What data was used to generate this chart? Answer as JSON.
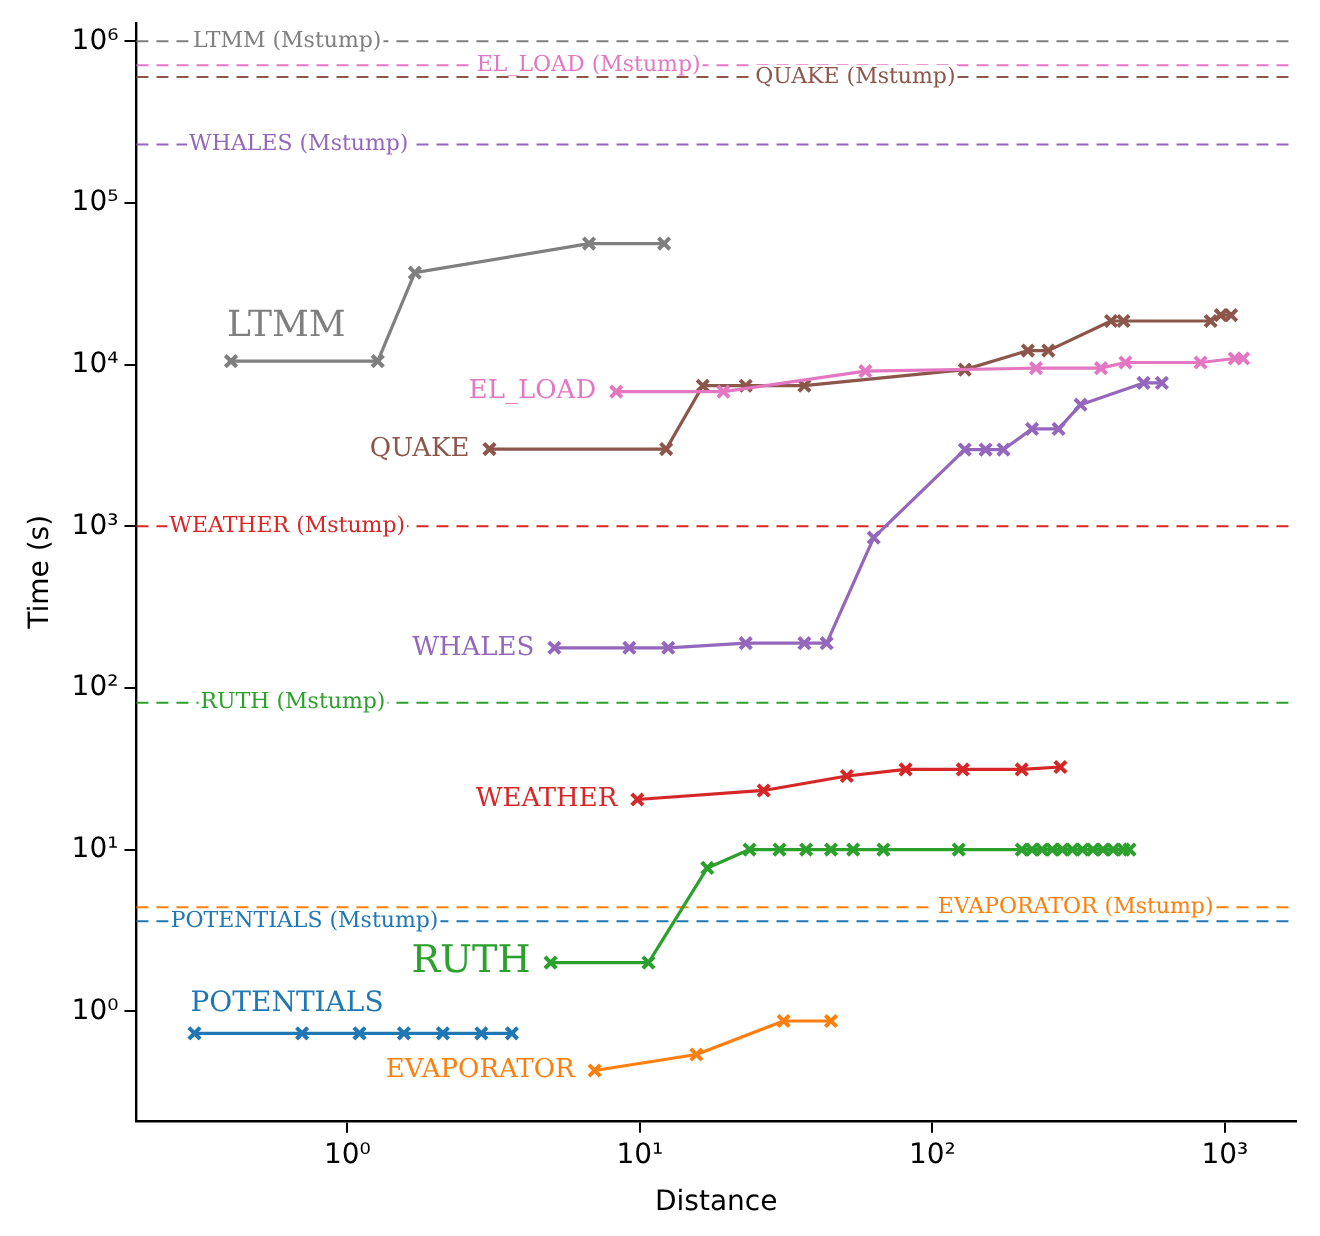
{
  "chart_data": {
    "type": "line",
    "xlabel": "Distance",
    "ylabel": "Time (s)",
    "log": "xy",
    "grid": false,
    "legend": false,
    "marker": "cross",
    "line_style": "solid",
    "xlim": [
      0.19,
      1750
    ],
    "ylim": [
      0.21,
      1300000
    ],
    "xticks": [
      {
        "value": 1,
        "label": "10⁰"
      },
      {
        "value": 10,
        "label": "10¹"
      },
      {
        "value": 100,
        "label": "10²"
      },
      {
        "value": 1000,
        "label": "10³"
      }
    ],
    "yticks": [
      {
        "value": 1,
        "label": "10⁰"
      },
      {
        "value": 10,
        "label": "10¹"
      },
      {
        "value": 100,
        "label": "10²"
      },
      {
        "value": 1000,
        "label": "10³"
      },
      {
        "value": 10000,
        "label": "10⁴"
      },
      {
        "value": 100000,
        "label": "10⁵"
      },
      {
        "value": 1000000,
        "label": "10⁶"
      }
    ],
    "series": [
      {
        "name": "LTMM",
        "color": "#7f7f7f",
        "x": [
          0.4,
          1.27,
          1.7,
          6.7,
          12.1
        ],
        "values": [
          10500,
          10500,
          37000,
          56000,
          56000
        ]
      },
      {
        "name": "EL_LOAD",
        "color": "#e377c2",
        "x": [
          8.3,
          19.3,
          59,
          226,
          377,
          457,
          826,
          1080,
          1155
        ],
        "values": [
          6800,
          6800,
          9100,
          9500,
          9500,
          10300,
          10300,
          10900,
          10900
        ]
      },
      {
        "name": "QUAKE",
        "color": "#8c564b",
        "x": [
          3.06,
          12.3,
          16.4,
          23,
          36.5,
          129,
          212,
          249,
          408,
          450,
          894,
          968,
          1050
        ],
        "values": [
          3000,
          3000,
          7400,
          7400,
          7400,
          9300,
          12200,
          12200,
          18600,
          18600,
          18600,
          20200,
          20200
        ]
      },
      {
        "name": "WHALES",
        "color": "#9467bd",
        "x": [
          5.1,
          9.2,
          12.5,
          23,
          36.5,
          43.5,
          63,
          129,
          152,
          175,
          219,
          270,
          321,
          527,
          609
        ],
        "values": [
          177,
          177,
          177,
          189,
          189,
          189,
          850,
          2980,
          2980,
          2980,
          4000,
          4000,
          5650,
          7700,
          7700
        ]
      },
      {
        "name": "WEATHER",
        "color": "#d62728",
        "x": [
          9.8,
          26.5,
          51,
          81,
          127,
          202,
          274
        ],
        "values": [
          20.4,
          23.2,
          28.5,
          31.3,
          31.3,
          31.3,
          32.4
        ]
      },
      {
        "name": "RUTH",
        "color": "#2ca02c",
        "x": [
          4.95,
          10.7,
          17,
          23.7,
          30,
          37,
          45,
          53.6,
          68,
          123,
          202,
          219,
          237,
          257,
          278,
          301,
          326,
          354,
          383,
          415,
          450,
          472
        ],
        "values": [
          2,
          2,
          7.7,
          10,
          10,
          10,
          10,
          10,
          10,
          10,
          10,
          10,
          10,
          10,
          10,
          10,
          10,
          10,
          10,
          10,
          10,
          10
        ]
      },
      {
        "name": "POTENTIALS",
        "color": "#1f77b4",
        "x": [
          0.3,
          0.7,
          1.1,
          1.56,
          2.12,
          2.87,
          3.65
        ],
        "values": [
          0.73,
          0.73,
          0.73,
          0.73,
          0.73,
          0.73,
          0.73
        ]
      },
      {
        "name": "EVAPORATOR",
        "color": "#ff7f0e",
        "x": [
          7,
          15.6,
          31,
          45
        ],
        "values": [
          0.43,
          0.54,
          0.87,
          0.87
        ]
      }
    ],
    "ref_lines": [
      {
        "axis": "y",
        "value": 1000000,
        "label": "LTMM (Mstump)",
        "color": "#7f7f7f",
        "line_style": "dashed"
      },
      {
        "axis": "y",
        "value": 710000,
        "label": "EL_LOAD (Mstump)",
        "color": "#e377c2",
        "line_style": "dashed"
      },
      {
        "axis": "y",
        "value": 600000,
        "label": "QUAKE (Mstump)",
        "color": "#8c564b",
        "line_style": "dashed"
      },
      {
        "axis": "y",
        "value": 230000,
        "label": "WHALES (Mstump)",
        "color": "#9467bd",
        "line_style": "dashed"
      },
      {
        "axis": "y",
        "value": 1000,
        "label": "WEATHER (Mstump)",
        "color": "#d62728",
        "line_style": "dashed"
      },
      {
        "axis": "y",
        "value": 81,
        "label": "RUTH (Mstump)",
        "color": "#2ca02c",
        "line_style": "dashed"
      },
      {
        "axis": "y",
        "value": 4.4,
        "label": "EVAPORATOR (Mstump)",
        "color": "#ff7f0e",
        "line_style": "dashed"
      },
      {
        "axis": "y",
        "value": 3.6,
        "label": "POTENTIALS (Mstump)",
        "color": "#1f77b4",
        "line_style": "dashed"
      }
    ]
  }
}
